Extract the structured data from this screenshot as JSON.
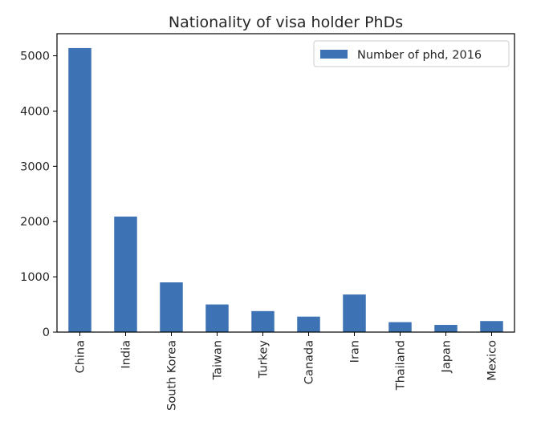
{
  "chart_data": {
    "type": "bar",
    "title": "Nationality of visa holder PhDs",
    "xlabel": "",
    "ylabel": "",
    "categories": [
      "China",
      "India",
      "South Korea",
      "Taiwan",
      "Turkey",
      "Canada",
      "Iran",
      "Thailand",
      "Japan",
      "Mexico"
    ],
    "series": [
      {
        "name": "Number of phd, 2016",
        "values": [
          5140,
          2090,
          900,
          500,
          380,
          280,
          680,
          180,
          130,
          200
        ]
      }
    ],
    "ylim": [
      0,
      5400
    ],
    "yticks": [
      0,
      1000,
      2000,
      3000,
      4000,
      5000
    ],
    "grid": false,
    "legend_position": "upper-right",
    "colors": {
      "bar": "#3d72b4",
      "axis": "#000000",
      "text": "#262626",
      "legend_border": "#cccccc"
    }
  }
}
